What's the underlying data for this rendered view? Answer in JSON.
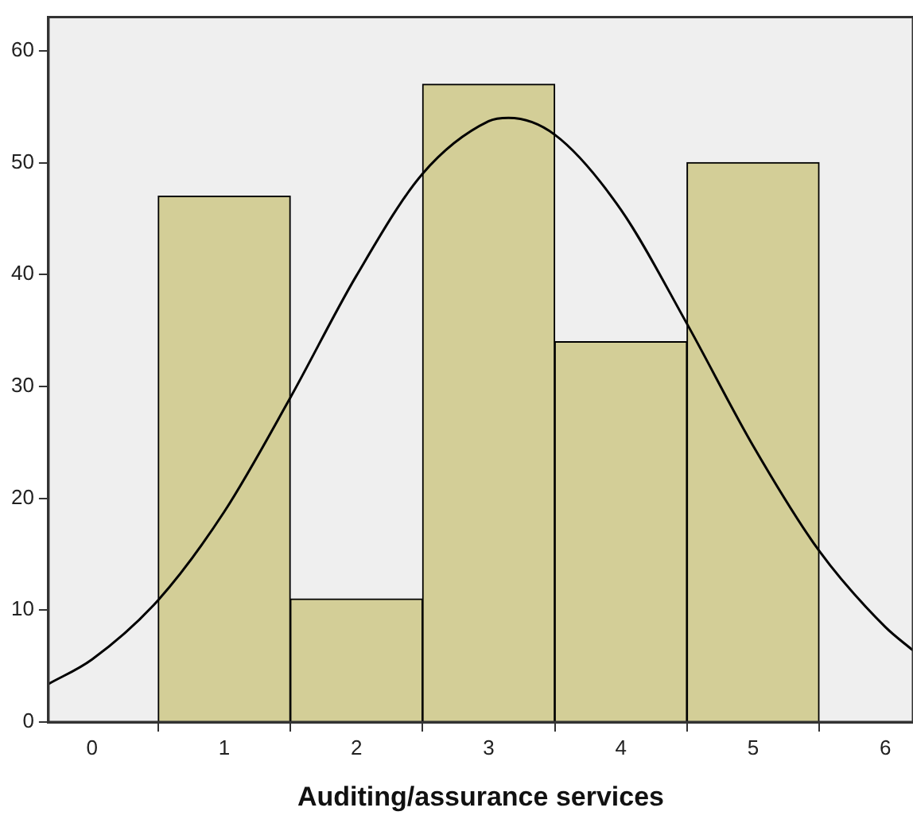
{
  "chart_data": {
    "type": "histogram",
    "xlabel": "Auditing/assurance services",
    "bins": [
      0.5,
      1.5,
      2.5,
      3.5,
      4.5,
      5.5
    ],
    "values": [
      47,
      11,
      57,
      34,
      50
    ],
    "color": "#d3ce97",
    "series": [
      {
        "type": "line",
        "color": "#000000",
        "x": [
          -0.33,
          0,
          0.5,
          1,
          1.5,
          2,
          2.5,
          3,
          3.15,
          3.5,
          4,
          4.5,
          5,
          5.5,
          6,
          6.21
        ],
        "values": [
          3.4,
          5.6,
          10.9,
          18.8,
          29.0,
          39.9,
          49.0,
          53.7,
          54,
          52.5,
          45.8,
          35.6,
          24.7,
          15.3,
          8.5,
          6.4
        ]
      }
    ],
    "xlim": [
      -0.33,
      6.21
    ],
    "xticks": [
      0,
      1,
      2,
      3,
      4,
      5,
      6
    ],
    "ylim": [
      0,
      63
    ],
    "yticks": [
      0,
      10,
      20,
      30,
      40,
      50,
      60
    ],
    "grid": false,
    "legend": false,
    "marker": "none"
  }
}
